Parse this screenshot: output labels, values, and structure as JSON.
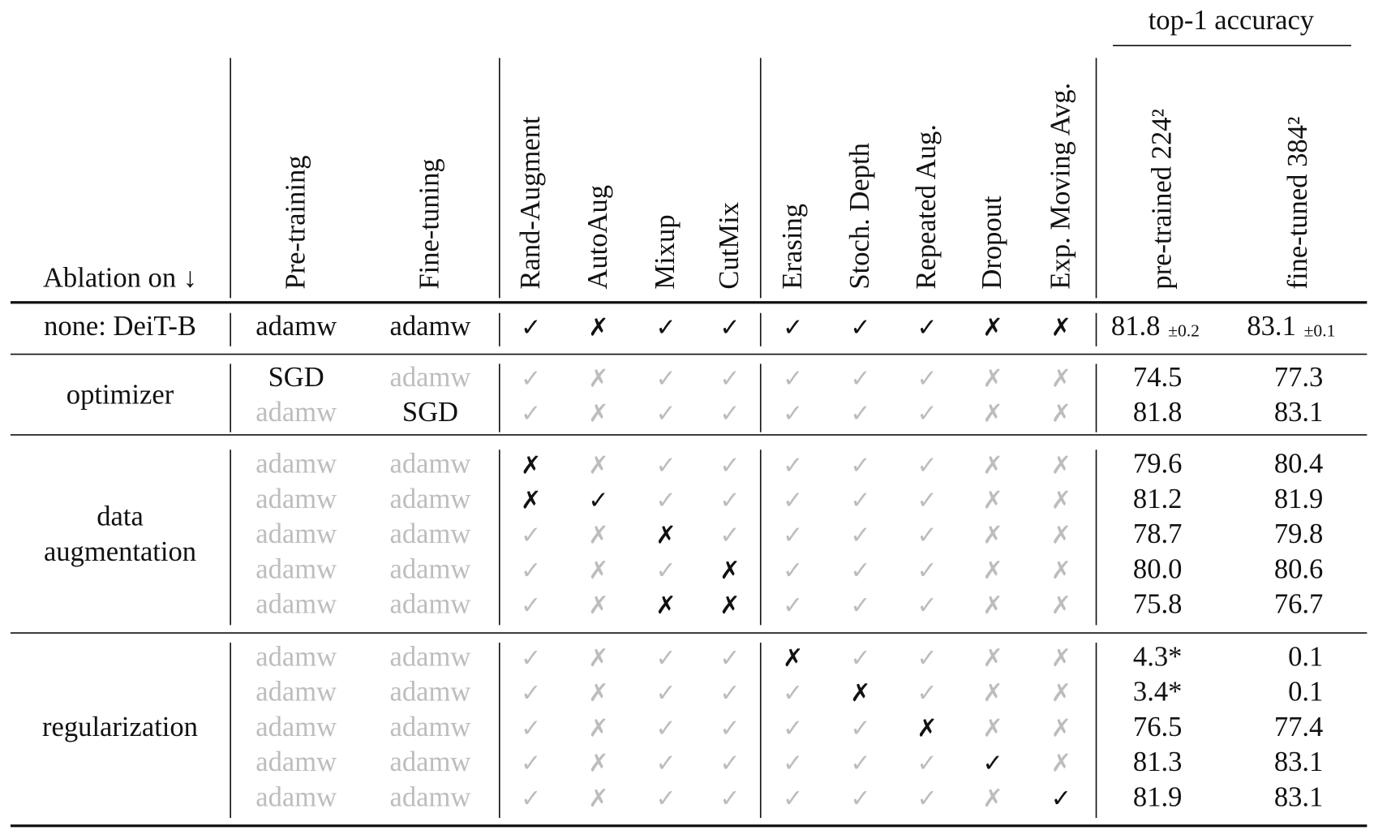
{
  "header": {
    "top_label": "top-1 accuracy",
    "ablation": "Ablation on ↓",
    "columns": [
      "Pre-training",
      "Fine-tuning",
      "Rand-Augment",
      "AutoAug",
      "Mixup",
      "CutMix",
      "Erasing",
      "Stoch. Depth",
      "Repeated Aug.",
      "Dropout",
      "Exp. Moving Avg.",
      "pre-trained 224²",
      "fine-tuned 384²"
    ]
  },
  "baseline": {
    "label": "none: DeiT-B",
    "cells": [
      {
        "text": "adamw",
        "dim": false
      },
      {
        "text": "adamw",
        "dim": false
      },
      {
        "text": "✓",
        "dim": false
      },
      {
        "text": "✗",
        "dim": false
      },
      {
        "text": "✓",
        "dim": false
      },
      {
        "text": "✓",
        "dim": false
      },
      {
        "text": "✓",
        "dim": false
      },
      {
        "text": "✓",
        "dim": false
      },
      {
        "text": "✓",
        "dim": false
      },
      {
        "text": "✗",
        "dim": false
      },
      {
        "text": "✗",
        "dim": false
      }
    ],
    "accuracy": [
      {
        "value": "81.8",
        "pm": "±0.2"
      },
      {
        "value": "83.1",
        "pm": "±0.1"
      }
    ]
  },
  "groups": [
    {
      "label": [
        "optimizer"
      ],
      "rows": [
        {
          "cells": [
            {
              "text": "SGD",
              "dim": false
            },
            {
              "text": "adamw",
              "dim": true
            },
            {
              "text": "✓",
              "dim": true
            },
            {
              "text": "✗",
              "dim": true
            },
            {
              "text": "✓",
              "dim": true
            },
            {
              "text": "✓",
              "dim": true
            },
            {
              "text": "✓",
              "dim": true
            },
            {
              "text": "✓",
              "dim": true
            },
            {
              "text": "✓",
              "dim": true
            },
            {
              "text": "✗",
              "dim": true
            },
            {
              "text": "✗",
              "dim": true
            }
          ],
          "accuracy": [
            "74.5",
            "77.3"
          ]
        },
        {
          "cells": [
            {
              "text": "adamw",
              "dim": true
            },
            {
              "text": "SGD",
              "dim": false
            },
            {
              "text": "✓",
              "dim": true
            },
            {
              "text": "✗",
              "dim": true
            },
            {
              "text": "✓",
              "dim": true
            },
            {
              "text": "✓",
              "dim": true
            },
            {
              "text": "✓",
              "dim": true
            },
            {
              "text": "✓",
              "dim": true
            },
            {
              "text": "✓",
              "dim": true
            },
            {
              "text": "✗",
              "dim": true
            },
            {
              "text": "✗",
              "dim": true
            }
          ],
          "accuracy": [
            "81.8",
            "83.1"
          ]
        }
      ]
    },
    {
      "label": [
        "data",
        "augmentation"
      ],
      "rows": [
        {
          "cells": [
            {
              "text": "adamw",
              "dim": true
            },
            {
              "text": "adamw",
              "dim": true
            },
            {
              "text": "✗",
              "dim": false
            },
            {
              "text": "✗",
              "dim": true
            },
            {
              "text": "✓",
              "dim": true
            },
            {
              "text": "✓",
              "dim": true
            },
            {
              "text": "✓",
              "dim": true
            },
            {
              "text": "✓",
              "dim": true
            },
            {
              "text": "✓",
              "dim": true
            },
            {
              "text": "✗",
              "dim": true
            },
            {
              "text": "✗",
              "dim": true
            }
          ],
          "accuracy": [
            "79.6",
            "80.4"
          ]
        },
        {
          "cells": [
            {
              "text": "adamw",
              "dim": true
            },
            {
              "text": "adamw",
              "dim": true
            },
            {
              "text": "✗",
              "dim": false
            },
            {
              "text": "✓",
              "dim": false
            },
            {
              "text": "✓",
              "dim": true
            },
            {
              "text": "✓",
              "dim": true
            },
            {
              "text": "✓",
              "dim": true
            },
            {
              "text": "✓",
              "dim": true
            },
            {
              "text": "✓",
              "dim": true
            },
            {
              "text": "✗",
              "dim": true
            },
            {
              "text": "✗",
              "dim": true
            }
          ],
          "accuracy": [
            "81.2",
            "81.9"
          ]
        },
        {
          "cells": [
            {
              "text": "adamw",
              "dim": true
            },
            {
              "text": "adamw",
              "dim": true
            },
            {
              "text": "✓",
              "dim": true
            },
            {
              "text": "✗",
              "dim": true
            },
            {
              "text": "✗",
              "dim": false
            },
            {
              "text": "✓",
              "dim": true
            },
            {
              "text": "✓",
              "dim": true
            },
            {
              "text": "✓",
              "dim": true
            },
            {
              "text": "✓",
              "dim": true
            },
            {
              "text": "✗",
              "dim": true
            },
            {
              "text": "✗",
              "dim": true
            }
          ],
          "accuracy": [
            "78.7",
            "79.8"
          ]
        },
        {
          "cells": [
            {
              "text": "adamw",
              "dim": true
            },
            {
              "text": "adamw",
              "dim": true
            },
            {
              "text": "✓",
              "dim": true
            },
            {
              "text": "✗",
              "dim": true
            },
            {
              "text": "✓",
              "dim": true
            },
            {
              "text": "✗",
              "dim": false
            },
            {
              "text": "✓",
              "dim": true
            },
            {
              "text": "✓",
              "dim": true
            },
            {
              "text": "✓",
              "dim": true
            },
            {
              "text": "✗",
              "dim": true
            },
            {
              "text": "✗",
              "dim": true
            }
          ],
          "accuracy": [
            "80.0",
            "80.6"
          ]
        },
        {
          "cells": [
            {
              "text": "adamw",
              "dim": true
            },
            {
              "text": "adamw",
              "dim": true
            },
            {
              "text": "✓",
              "dim": true
            },
            {
              "text": "✗",
              "dim": true
            },
            {
              "text": "✗",
              "dim": false
            },
            {
              "text": "✗",
              "dim": false
            },
            {
              "text": "✓",
              "dim": true
            },
            {
              "text": "✓",
              "dim": true
            },
            {
              "text": "✓",
              "dim": true
            },
            {
              "text": "✗",
              "dim": true
            },
            {
              "text": "✗",
              "dim": true
            }
          ],
          "accuracy": [
            "75.8",
            "76.7"
          ]
        }
      ]
    },
    {
      "label": [
        "regularization"
      ],
      "rows": [
        {
          "cells": [
            {
              "text": "adamw",
              "dim": true
            },
            {
              "text": "adamw",
              "dim": true
            },
            {
              "text": "✓",
              "dim": true
            },
            {
              "text": "✗",
              "dim": true
            },
            {
              "text": "✓",
              "dim": true
            },
            {
              "text": "✓",
              "dim": true
            },
            {
              "text": "✗",
              "dim": false
            },
            {
              "text": "✓",
              "dim": true
            },
            {
              "text": "✓",
              "dim": true
            },
            {
              "text": "✗",
              "dim": true
            },
            {
              "text": "✗",
              "dim": true
            }
          ],
          "accuracy": [
            "4.3*",
            "0.1"
          ]
        },
        {
          "cells": [
            {
              "text": "adamw",
              "dim": true
            },
            {
              "text": "adamw",
              "dim": true
            },
            {
              "text": "✓",
              "dim": true
            },
            {
              "text": "✗",
              "dim": true
            },
            {
              "text": "✓",
              "dim": true
            },
            {
              "text": "✓",
              "dim": true
            },
            {
              "text": "✓",
              "dim": true
            },
            {
              "text": "✗",
              "dim": false
            },
            {
              "text": "✓",
              "dim": true
            },
            {
              "text": "✗",
              "dim": true
            },
            {
              "text": "✗",
              "dim": true
            }
          ],
          "accuracy": [
            "3.4*",
            "0.1"
          ]
        },
        {
          "cells": [
            {
              "text": "adamw",
              "dim": true
            },
            {
              "text": "adamw",
              "dim": true
            },
            {
              "text": "✓",
              "dim": true
            },
            {
              "text": "✗",
              "dim": true
            },
            {
              "text": "✓",
              "dim": true
            },
            {
              "text": "✓",
              "dim": true
            },
            {
              "text": "✓",
              "dim": true
            },
            {
              "text": "✓",
              "dim": true
            },
            {
              "text": "✗",
              "dim": false
            },
            {
              "text": "✗",
              "dim": true
            },
            {
              "text": "✗",
              "dim": true
            }
          ],
          "accuracy": [
            "76.5",
            "77.4"
          ]
        },
        {
          "cells": [
            {
              "text": "adamw",
              "dim": true
            },
            {
              "text": "adamw",
              "dim": true
            },
            {
              "text": "✓",
              "dim": true
            },
            {
              "text": "✗",
              "dim": true
            },
            {
              "text": "✓",
              "dim": true
            },
            {
              "text": "✓",
              "dim": true
            },
            {
              "text": "✓",
              "dim": true
            },
            {
              "text": "✓",
              "dim": true
            },
            {
              "text": "✓",
              "dim": true
            },
            {
              "text": "✓",
              "dim": false
            },
            {
              "text": "✗",
              "dim": true
            }
          ],
          "accuracy": [
            "81.3",
            "83.1"
          ]
        },
        {
          "cells": [
            {
              "text": "adamw",
              "dim": true
            },
            {
              "text": "adamw",
              "dim": true
            },
            {
              "text": "✓",
              "dim": true
            },
            {
              "text": "✗",
              "dim": true
            },
            {
              "text": "✓",
              "dim": true
            },
            {
              "text": "✓",
              "dim": true
            },
            {
              "text": "✓",
              "dim": true
            },
            {
              "text": "✓",
              "dim": true
            },
            {
              "text": "✓",
              "dim": true
            },
            {
              "text": "✗",
              "dim": true
            },
            {
              "text": "✓",
              "dim": false
            }
          ],
          "accuracy": [
            "81.9",
            "83.1"
          ]
        }
      ]
    }
  ]
}
